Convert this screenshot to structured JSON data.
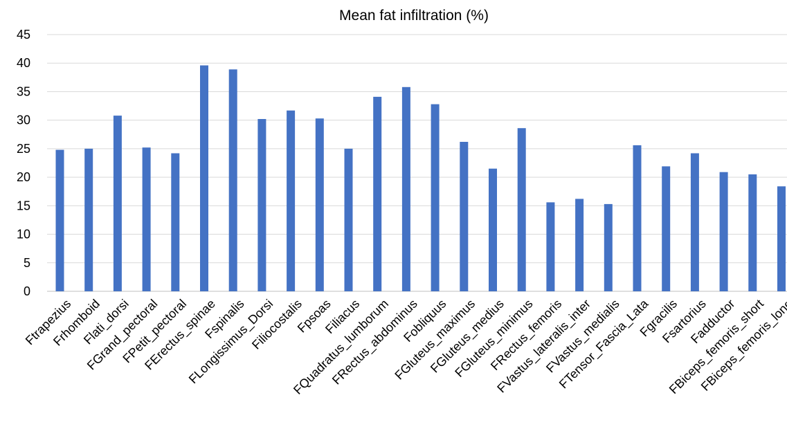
{
  "chart_data": {
    "type": "bar",
    "title": "Mean fat infiltration (%)",
    "xlabel": "",
    "ylabel": "",
    "ylim": [
      0,
      45
    ],
    "yticks": [
      0,
      5,
      10,
      15,
      20,
      25,
      30,
      35,
      40,
      45
    ],
    "grid": true,
    "legend": "none",
    "bar_color": "#4472C4",
    "categories": [
      "Ftrapezius",
      "Frhomboid",
      "Flati_dorsi",
      "FGrand_pectoral",
      "FPetit_pectoral",
      "FErectus_spinae",
      "Fspinalis",
      "FLongissimus_Dorsi",
      "Filiocostalis",
      "Fpsoas",
      "Filiacus",
      "FQuadratus_lumborum",
      "FRectus_abdominus",
      "Fobliquus",
      "FGluteus_maximus",
      "FGluteus_medius",
      "FGluteus_minimus",
      "FRectus_femoris",
      "FVastus_lateralis_inter",
      "FVastus_medialis",
      "FTensor_Fascia_Lata",
      "Fgracilis",
      "Fsartorius",
      "Fadductor",
      "FBiceps_femoris_short",
      "FBiceps_femoris_long"
    ],
    "values": [
      24.8,
      25.0,
      30.8,
      25.2,
      24.2,
      39.6,
      38.9,
      30.2,
      31.7,
      30.3,
      25.0,
      34.1,
      35.8,
      32.8,
      26.2,
      21.5,
      28.6,
      15.6,
      16.2,
      15.3,
      25.6,
      21.9,
      24.2,
      20.9,
      20.5,
      18.4
    ]
  }
}
